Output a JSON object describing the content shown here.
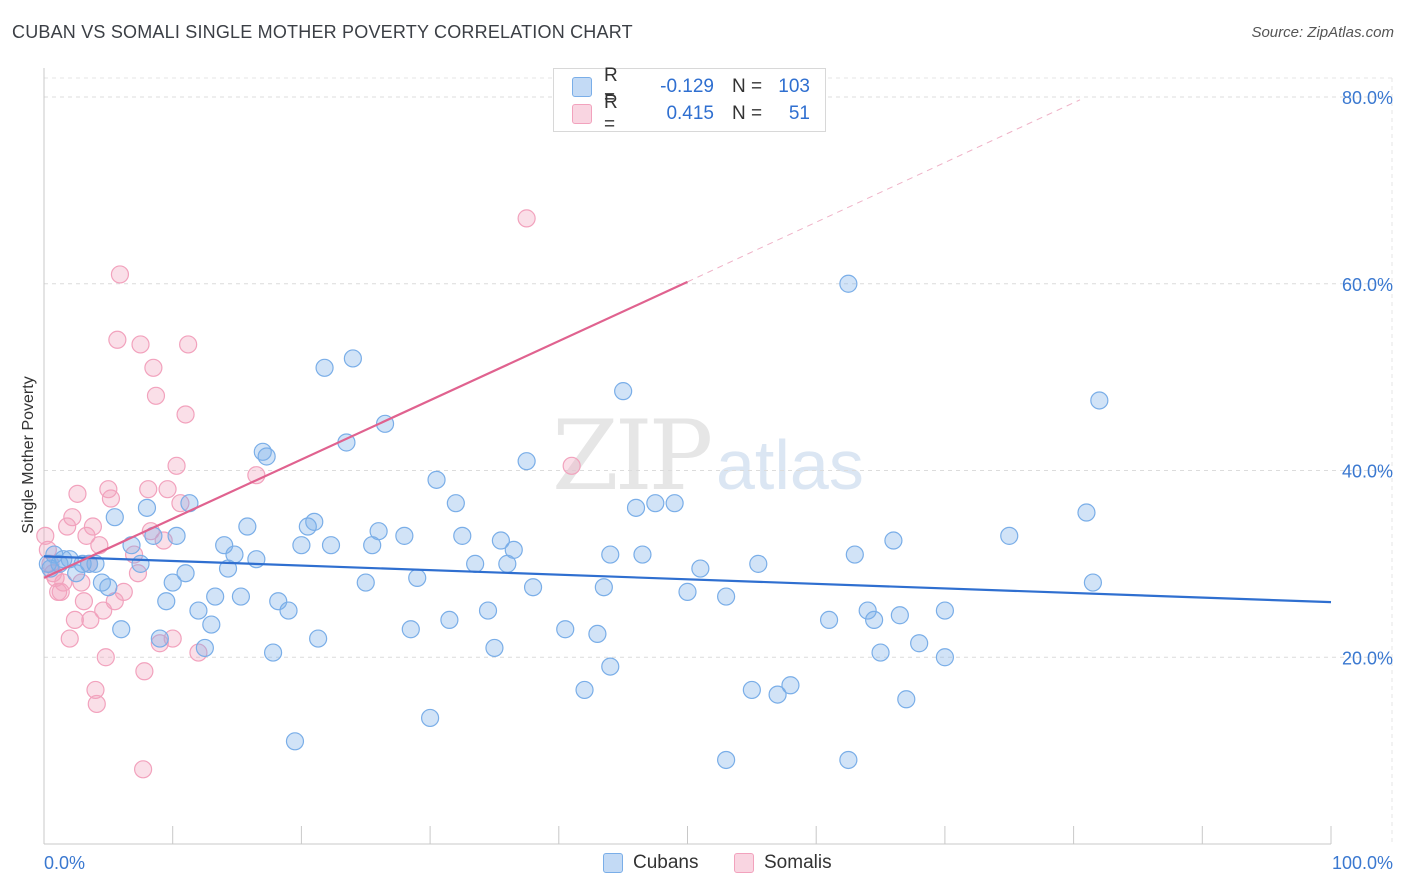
{
  "header": {
    "title": "CUBAN VS SOMALI SINGLE MOTHER POVERTY CORRELATION CHART",
    "source": "Source: ZipAtlas.com"
  },
  "watermark": {
    "zip": "ZIP",
    "atlas": "atlas"
  },
  "legend": {
    "rows": [
      {
        "r_label": "R =",
        "r_value": "-0.129",
        "n_label": "N =",
        "n_value": "103",
        "color": "#7aaee8"
      },
      {
        "r_label": "R =",
        "r_value": "0.415",
        "n_label": "N =",
        "n_value": "51",
        "color": "#f2a2bd"
      }
    ]
  },
  "bottom_legend": {
    "cubans": "Cubans",
    "somalis": "Somalis"
  },
  "chart_data": {
    "type": "scatter",
    "title": "CUBAN VS SOMALI SINGLE MOTHER POVERTY CORRELATION CHART",
    "xlabel": "",
    "ylabel": "Single Mother Poverty",
    "xlim": [
      0,
      100
    ],
    "ylim": [
      0,
      80
    ],
    "x_tick_labels": [
      "0.0%",
      "100.0%"
    ],
    "y_ticks": [
      20,
      40,
      60,
      80
    ],
    "y_tick_labels": [
      "20.0%",
      "40.0%",
      "60.0%",
      "80.0%"
    ],
    "grid": true,
    "colors": {
      "cubans": "#7aaee8",
      "somalis": "#f2a2bd",
      "cubans_line": "#2f6fd0",
      "somalis_line": "#e0628f"
    },
    "series": [
      {
        "name": "Cubans",
        "trend": {
          "x": [
            0,
            100
          ],
          "y": [
            30.8,
            25.9
          ]
        },
        "points": [
          [
            0.3,
            30
          ],
          [
            0.5,
            29.5
          ],
          [
            0.8,
            31
          ],
          [
            1.2,
            30
          ],
          [
            1.5,
            30.5
          ],
          [
            2,
            30.5
          ],
          [
            2.5,
            29
          ],
          [
            3,
            30
          ],
          [
            3.5,
            30
          ],
          [
            4,
            30
          ],
          [
            4.5,
            28
          ],
          [
            5,
            27.5
          ],
          [
            5.5,
            35
          ],
          [
            6,
            23
          ],
          [
            6.8,
            32
          ],
          [
            7.5,
            30
          ],
          [
            8,
            36
          ],
          [
            8.5,
            33
          ],
          [
            9,
            22
          ],
          [
            9.5,
            26
          ],
          [
            10,
            28
          ],
          [
            10.3,
            33
          ],
          [
            11,
            29
          ],
          [
            11.3,
            36.5
          ],
          [
            12,
            25
          ],
          [
            12.5,
            21
          ],
          [
            13,
            23.5
          ],
          [
            13.3,
            26.5
          ],
          [
            14,
            32
          ],
          [
            14.3,
            29.5
          ],
          [
            14.8,
            31
          ],
          [
            15.3,
            26.5
          ],
          [
            15.8,
            34
          ],
          [
            16.5,
            30.5
          ],
          [
            17,
            42
          ],
          [
            17.3,
            41.5
          ],
          [
            17.8,
            20.5
          ],
          [
            18.2,
            26
          ],
          [
            19,
            25
          ],
          [
            19.5,
            11
          ],
          [
            20,
            32
          ],
          [
            20.5,
            34
          ],
          [
            21,
            34.5
          ],
          [
            21.3,
            22
          ],
          [
            21.8,
            51
          ],
          [
            22.3,
            32
          ],
          [
            23.5,
            43
          ],
          [
            24,
            52
          ],
          [
            25,
            28
          ],
          [
            25.5,
            32
          ],
          [
            26,
            33.5
          ],
          [
            26.5,
            45
          ],
          [
            28,
            33
          ],
          [
            28.5,
            23
          ],
          [
            29,
            28.5
          ],
          [
            30,
            13.5
          ],
          [
            30.5,
            39
          ],
          [
            31.5,
            24
          ],
          [
            32,
            36.5
          ],
          [
            32.5,
            33
          ],
          [
            33.5,
            30
          ],
          [
            34.5,
            25
          ],
          [
            35,
            21
          ],
          [
            35.5,
            32.5
          ],
          [
            36,
            30
          ],
          [
            36.5,
            31.5
          ],
          [
            37.5,
            41
          ],
          [
            38,
            27.5
          ],
          [
            40.5,
            23
          ],
          [
            42,
            16.5
          ],
          [
            43,
            22.5
          ],
          [
            43.5,
            27.5
          ],
          [
            44,
            19
          ],
          [
            44,
            31
          ],
          [
            45,
            48.5
          ],
          [
            46,
            36
          ],
          [
            46.5,
            31
          ],
          [
            47.5,
            36.5
          ],
          [
            49,
            36.5
          ],
          [
            50,
            27
          ],
          [
            51,
            29.5
          ],
          [
            53,
            26.5
          ],
          [
            53,
            9
          ],
          [
            55,
            16.5
          ],
          [
            55.5,
            30
          ],
          [
            57,
            16
          ],
          [
            58,
            17
          ],
          [
            61,
            24
          ],
          [
            62.5,
            9
          ],
          [
            63,
            31
          ],
          [
            64,
            25
          ],
          [
            64.5,
            24
          ],
          [
            65,
            20.5
          ],
          [
            66,
            32.5
          ],
          [
            66.5,
            24.5
          ],
          [
            67,
            15.5
          ],
          [
            68,
            21.5
          ],
          [
            70,
            25
          ],
          [
            70,
            20
          ],
          [
            75,
            33
          ],
          [
            81,
            35.5
          ],
          [
            81.5,
            28
          ],
          [
            82,
            47.5
          ],
          [
            62.5,
            60
          ]
        ]
      },
      {
        "name": "Somalis",
        "trend": {
          "x": [
            0,
            50
          ],
          "y": [
            28.5,
            60.2
          ]
        },
        "trend_ext": {
          "x": [
            50,
            80.5
          ],
          "y": [
            60.2,
            79.7
          ]
        },
        "points": [
          [
            0.1,
            33
          ],
          [
            0.3,
            31.5
          ],
          [
            0.5,
            30
          ],
          [
            0.7,
            29
          ],
          [
            0.9,
            28.5
          ],
          [
            1.1,
            27
          ],
          [
            1.3,
            27
          ],
          [
            1.5,
            28
          ],
          [
            1.8,
            34
          ],
          [
            2,
            22
          ],
          [
            2.2,
            35
          ],
          [
            2.4,
            24
          ],
          [
            2.6,
            37.5
          ],
          [
            2.9,
            28
          ],
          [
            3.1,
            26
          ],
          [
            3.3,
            33
          ],
          [
            3.5,
            30
          ],
          [
            3.6,
            24
          ],
          [
            3.8,
            34
          ],
          [
            4,
            16.5
          ],
          [
            4.1,
            15
          ],
          [
            4.3,
            32
          ],
          [
            4.6,
            25
          ],
          [
            4.8,
            20
          ],
          [
            5,
            38
          ],
          [
            5.2,
            37
          ],
          [
            5.5,
            26
          ],
          [
            5.7,
            54
          ],
          [
            5.9,
            61
          ],
          [
            6.2,
            27
          ],
          [
            7,
            31
          ],
          [
            7.3,
            29
          ],
          [
            7.5,
            53.5
          ],
          [
            7.7,
            8
          ],
          [
            7.8,
            18.5
          ],
          [
            8.1,
            38
          ],
          [
            8.3,
            33.5
          ],
          [
            8.5,
            51
          ],
          [
            8.7,
            48
          ],
          [
            9,
            21.5
          ],
          [
            9.3,
            32.5
          ],
          [
            9.6,
            38
          ],
          [
            10,
            22
          ],
          [
            10.3,
            40.5
          ],
          [
            10.6,
            36.5
          ],
          [
            11,
            46
          ],
          [
            11.2,
            53.5
          ],
          [
            12,
            20.5
          ],
          [
            16.5,
            39.5
          ],
          [
            37.5,
            67
          ],
          [
            41,
            40.5
          ]
        ]
      }
    ]
  }
}
